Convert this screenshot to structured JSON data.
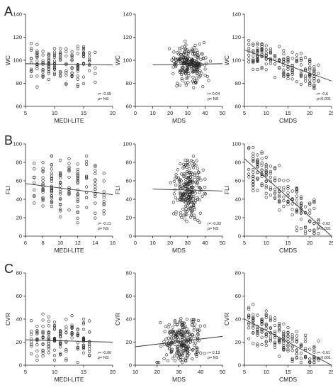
{
  "panel_labels": [
    "A",
    "B",
    "C"
  ],
  "chart_data": [
    {
      "id": "A1",
      "type": "scatter",
      "xlabel": "MEDI-LITE",
      "ylabel": "WC",
      "xlim": [
        5,
        20
      ],
      "ylim": [
        60,
        140
      ],
      "xticks": [
        5,
        10,
        15,
        20
      ],
      "yticks": [
        60,
        80,
        100,
        120,
        140
      ],
      "stat_r": "r= -0.05",
      "stat_p": "p= NS",
      "line": [
        [
          5,
          97
        ],
        [
          20,
          96
        ]
      ],
      "seed": 11,
      "n": 150,
      "xmode": "int",
      "xrange": [
        6,
        17
      ],
      "line_y": [
        96.5,
        -0.05
      ],
      "spread": 13
    },
    {
      "id": "A2",
      "type": "scatter",
      "xlabel": "MDS",
      "ylabel": "WC",
      "xlim": [
        0,
        50
      ],
      "ylim": [
        60,
        140
      ],
      "xticks": [
        0,
        10,
        20,
        30,
        40,
        50
      ],
      "yticks": [
        60,
        80,
        100,
        120,
        140
      ],
      "stat_r": "r= 0.04",
      "stat_p": "p= NS",
      "line": [
        [
          10,
          96
        ],
        [
          50,
          97
        ]
      ],
      "seed": 22,
      "n": 230,
      "xmode": "cont",
      "xrange": [
        18,
        45
      ],
      "line_y": [
        96.5,
        0.0
      ],
      "spread": 13
    },
    {
      "id": "A3",
      "type": "scatter",
      "xlabel": "CMDS",
      "ylabel": "WC",
      "xlim": [
        5,
        25
      ],
      "ylim": [
        60,
        140
      ],
      "xticks": [
        5,
        10,
        15,
        20,
        25
      ],
      "yticks": [
        60,
        80,
        100,
        120,
        140
      ],
      "stat_r": "r= -0.6",
      "stat_p": "p<0.001",
      "line": [
        [
          5,
          109
        ],
        [
          25,
          82
        ]
      ],
      "seed": 33,
      "n": 180,
      "xmode": "int",
      "xrange": [
        6,
        22
      ],
      "line_y": [
        109,
        -1.35
      ],
      "spread": 11
    },
    {
      "id": "B1",
      "type": "scatter",
      "xlabel": "MEDI-LITE",
      "ylabel": "FLI",
      "xlim": [
        6,
        16
      ],
      "ylim": [
        0,
        100
      ],
      "xticks": [
        6,
        8,
        10,
        12,
        14,
        16
      ],
      "yticks": [
        0,
        20,
        40,
        60,
        80,
        100
      ],
      "stat_r": "r= -0.11",
      "stat_p": "p= NS",
      "line": [
        [
          6,
          57
        ],
        [
          16,
          45
        ]
      ],
      "seed": 44,
      "n": 150,
      "xmode": "int",
      "xrange": [
        7,
        15
      ],
      "line_y": [
        57,
        -1.2
      ],
      "spread": 25
    },
    {
      "id": "B2",
      "type": "scatter",
      "xlabel": "MDS",
      "ylabel": "FLI",
      "xlim": [
        0,
        50
      ],
      "ylim": [
        0,
        100
      ],
      "xticks": [
        0,
        10,
        20,
        30,
        40,
        50
      ],
      "yticks": [
        0,
        20,
        40,
        60,
        80,
        100
      ],
      "stat_r": "r= -0.03",
      "stat_p": "p= NS",
      "line": [
        [
          10,
          51
        ],
        [
          50,
          49
        ]
      ],
      "seed": 55,
      "n": 230,
      "xmode": "cont",
      "xrange": [
        19,
        42
      ],
      "line_y": [
        51.5,
        -0.05
      ],
      "spread": 25
    },
    {
      "id": "B3",
      "type": "scatter",
      "xlabel": "CMDS",
      "ylabel": "FLI",
      "xlim": [
        5,
        25
      ],
      "ylim": [
        0,
        100
      ],
      "xticks": [
        5,
        10,
        15,
        20,
        25
      ],
      "yticks": [
        0,
        20,
        40,
        60,
        80,
        100
      ],
      "stat_r": "r= -0.62",
      "stat_p": "p<0.001",
      "line": [
        [
          5,
          84
        ],
        [
          25,
          0
        ]
      ],
      "seed": 66,
      "n": 180,
      "xmode": "int",
      "xrange": [
        6,
        22
      ],
      "line_y": [
        84,
        -4.2
      ],
      "spread": 18
    },
    {
      "id": "C1",
      "type": "scatter",
      "xlabel": "MEDI-LITE",
      "ylabel": "CVR",
      "xlim": [
        5,
        20
      ],
      "ylim": [
        0,
        80
      ],
      "xticks": [
        5,
        10,
        15,
        20
      ],
      "yticks": [
        0,
        20,
        40,
        60,
        80
      ],
      "stat_r": "r= -0.06",
      "stat_p": "p= NS",
      "line": [
        [
          5,
          22
        ],
        [
          20,
          20
        ]
      ],
      "seed": 77,
      "n": 150,
      "xmode": "int",
      "xrange": [
        6,
        16
      ],
      "line_y": [
        22,
        -0.13
      ],
      "spread": 15
    },
    {
      "id": "C2",
      "type": "scatter",
      "xlabel": "MDS",
      "ylabel": "CVR",
      "xlim": [
        10,
        50
      ],
      "ylim": [
        0,
        80
      ],
      "xticks": [
        10,
        20,
        30,
        40,
        50
      ],
      "yticks": [
        0,
        20,
        40,
        60,
        80
      ],
      "stat_r": "r= 0.13",
      "stat_p": "p= NS",
      "line": [
        [
          10,
          16
        ],
        [
          50,
          25
        ]
      ],
      "seed": 88,
      "n": 230,
      "xmode": "cont",
      "xrange": [
        18,
        44
      ],
      "line_y": [
        16,
        0.225
      ],
      "spread": 14
    },
    {
      "id": "C3",
      "type": "scatter",
      "xlabel": "CMDS",
      "ylabel": "CVR",
      "xlim": [
        5,
        25
      ],
      "ylim": [
        0,
        80
      ],
      "xticks": [
        5,
        10,
        15,
        20,
        25
      ],
      "yticks": [
        0,
        20,
        40,
        60,
        80
      ],
      "stat_r": "r= -0.61",
      "stat_p": "p<0.001",
      "line": [
        [
          5,
          40
        ],
        [
          25,
          0
        ]
      ],
      "seed": 99,
      "n": 180,
      "xmode": "int",
      "xrange": [
        6,
        22
      ],
      "line_y": [
        40,
        -2.0
      ],
      "spread": 12
    }
  ]
}
